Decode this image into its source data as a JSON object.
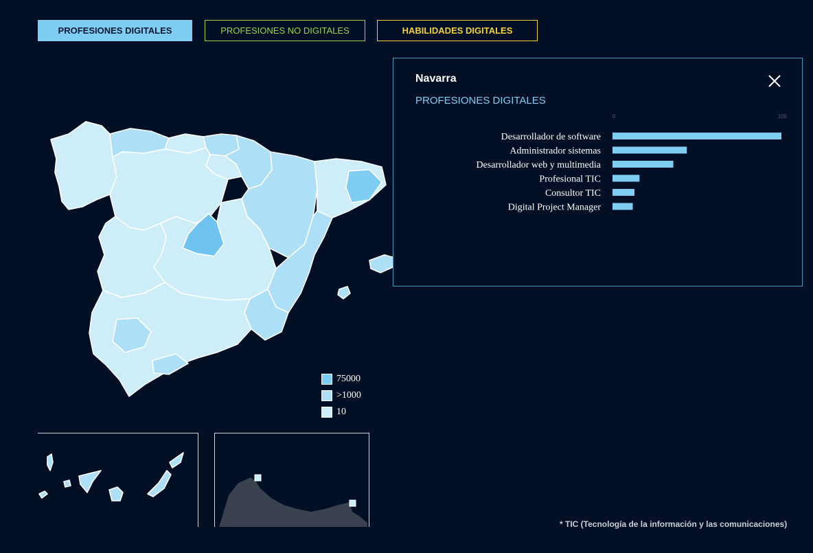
{
  "tabs": [
    {
      "label": "PROFESIONES DIGITALES",
      "active": true
    },
    {
      "label": "PROFESIONES NO DIGITALES",
      "active": false
    },
    {
      "label": "HABILIDADES DIGITALES",
      "active": false
    }
  ],
  "colors": {
    "background": "#020f24",
    "tab_digitales": "#7fcdf3",
    "tab_no_digitales": "#9ad24a",
    "tab_habilidades": "#f4d23c",
    "legend_high": "#7fcdf3",
    "legend_mid": "#ade0f6",
    "legend_low": "#cdeef8"
  },
  "legend": [
    {
      "label": "75000",
      "color": "#7fcdf3"
    },
    {
      "label": ">1000",
      "color": "#ade0f6"
    },
    {
      "label": "10",
      "color": "#cdeef8"
    }
  ],
  "panel": {
    "title": "Navarra",
    "subtitle": "PROFESIONES DIGITALES",
    "close_icon": "close-icon"
  },
  "chart_data": {
    "type": "bar",
    "orientation": "horizontal",
    "categories": [
      "Desarrollador de software",
      "Administrador sistemas",
      "Desarrollador web y multimedia",
      "Profesional TIC",
      "Consultor TIC",
      "Digital Project Manager"
    ],
    "values": [
      100,
      44,
      36,
      16,
      13,
      12
    ],
    "xlim": [
      0,
      100
    ],
    "ticks": [
      "0",
      "100"
    ],
    "bar_color": "#7fcdf3",
    "grid": false
  },
  "footnote": "* TIC (Tecnología de la información y las comunicaciones)"
}
